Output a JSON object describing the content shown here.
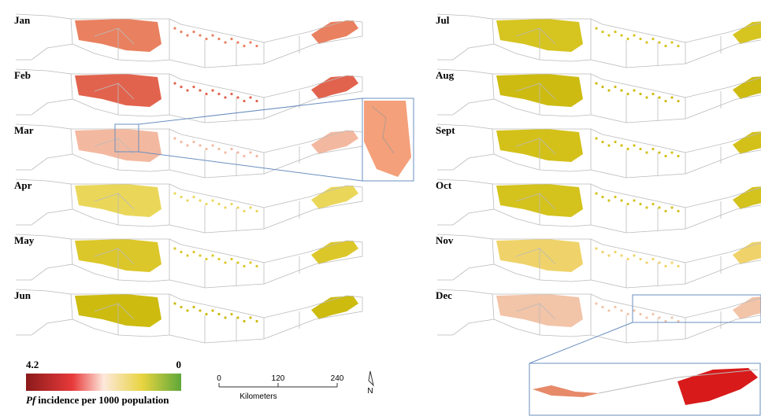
{
  "panels": [
    {
      "label": "Jan",
      "color": "#e9805f"
    },
    {
      "label": "Feb",
      "color": "#e2634d"
    },
    {
      "label": "Mar",
      "color": "#f3b9a0"
    },
    {
      "label": "Apr",
      "color": "#ead75a"
    },
    {
      "label": "May",
      "color": "#dcc72a"
    },
    {
      "label": "Jun",
      "color": "#cdbb10"
    },
    {
      "label": "Jul",
      "color": "#d6c420"
    },
    {
      "label": "Aug",
      "color": "#cdbb12"
    },
    {
      "label": "Sept",
      "color": "#d3c11a"
    },
    {
      "label": "Oct",
      "color": "#d4c21d"
    },
    {
      "label": "Nov",
      "color": "#efd36a"
    },
    {
      "label": "Dec",
      "color": "#f2c4a8"
    }
  ],
  "legend": {
    "max": 4.2,
    "min": 0,
    "title_italic": "Pf",
    "title": "incidence per 1000 population"
  },
  "scale": {
    "ticks": [
      0,
      120,
      240
    ],
    "unit": "Kilometers"
  },
  "north": "N"
}
